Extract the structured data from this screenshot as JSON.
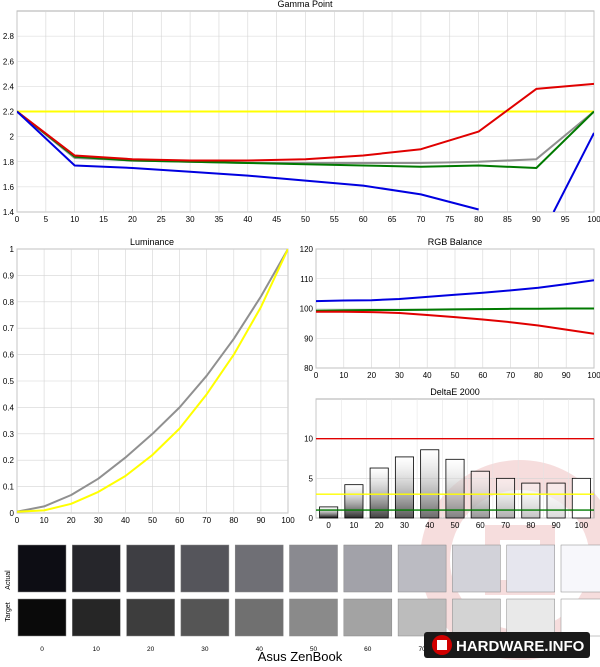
{
  "chart_data": [
    {
      "id": "gamma",
      "type": "line",
      "title": "Gamma Point",
      "x": [
        0,
        10,
        20,
        30,
        40,
        50,
        60,
        70,
        80,
        90,
        100
      ],
      "xticks": [
        0,
        5,
        10,
        15,
        20,
        25,
        30,
        35,
        40,
        45,
        50,
        55,
        60,
        65,
        70,
        75,
        80,
        85,
        90,
        95,
        100
      ],
      "yticks": [
        1.4,
        1.6,
        1.8,
        2,
        2.2,
        2.4,
        2.6,
        2.8
      ],
      "xlim": [
        0,
        100
      ],
      "ylim": [
        1.4,
        3.0
      ],
      "grid": true,
      "series": [
        {
          "color": "#ffff00",
          "values": [
            2.2,
            2.2,
            2.2,
            2.2,
            2.2,
            2.2,
            2.2,
            2.2,
            2.2,
            2.2,
            2.2
          ]
        },
        {
          "color": "#909090",
          "values": [
            2.2,
            1.83,
            1.81,
            1.8,
            1.79,
            1.79,
            1.79,
            1.79,
            1.8,
            1.82,
            2.2
          ]
        },
        {
          "color": "#007a00",
          "values": [
            2.2,
            1.84,
            1.81,
            1.8,
            1.79,
            1.78,
            1.77,
            1.76,
            1.77,
            1.75,
            2.2
          ]
        },
        {
          "color": "#e00000",
          "values": [
            2.2,
            1.85,
            1.82,
            1.81,
            1.81,
            1.82,
            1.85,
            1.9,
            2.04,
            2.38,
            2.42
          ]
        },
        {
          "color": "#0000e0",
          "values": [
            2.2,
            1.77,
            1.75,
            1.72,
            1.69,
            1.65,
            1.61,
            1.54,
            1.42,
            null,
            null
          ]
        },
        {
          "color": "#0000e0",
          "values": [
            null,
            null,
            null,
            null,
            null,
            null,
            null,
            null,
            null,
            1.4,
            2.03
          ],
          "x_override": [
            null,
            null,
            null,
            null,
            null,
            null,
            null,
            null,
            null,
            93,
            100
          ]
        }
      ]
    },
    {
      "id": "luminance",
      "type": "line",
      "title": "Luminance",
      "x": [
        0,
        10,
        20,
        30,
        40,
        50,
        60,
        70,
        80,
        90,
        100
      ],
      "xticks": [
        0,
        10,
        20,
        30,
        40,
        50,
        60,
        70,
        80,
        90,
        100
      ],
      "yticks": [
        0,
        0.1,
        0.2,
        0.3,
        0.4,
        0.5,
        0.6,
        0.7,
        0.8,
        0.9,
        1
      ],
      "xlim": [
        0,
        100
      ],
      "ylim": [
        0,
        1
      ],
      "grid": true,
      "series": [
        {
          "color": "#909090",
          "values": [
            0.005,
            0.025,
            0.068,
            0.13,
            0.21,
            0.3,
            0.4,
            0.52,
            0.66,
            0.82,
            1.0
          ]
        },
        {
          "color": "#ffff00",
          "values": [
            0.005,
            0.01,
            0.035,
            0.08,
            0.14,
            0.22,
            0.32,
            0.45,
            0.6,
            0.78,
            1.0
          ]
        }
      ]
    },
    {
      "id": "rgb",
      "type": "line",
      "title": "RGB Balance",
      "x": [
        0,
        10,
        20,
        30,
        40,
        50,
        60,
        70,
        80,
        90,
        100
      ],
      "xticks": [
        0,
        10,
        20,
        30,
        40,
        50,
        60,
        70,
        80,
        90,
        100
      ],
      "yticks": [
        80,
        90,
        100,
        110,
        120
      ],
      "xlim": [
        0,
        100
      ],
      "ylim": [
        80,
        120
      ],
      "grid": true,
      "series": [
        {
          "color": "#0000e0",
          "values": [
            102.5,
            102.7,
            102.8,
            103.2,
            103.9,
            104.6,
            105.3,
            106.1,
            107.0,
            108.2,
            109.5
          ]
        },
        {
          "color": "#007a00",
          "values": [
            99.3,
            99.4,
            99.5,
            99.5,
            99.6,
            99.7,
            99.8,
            99.9,
            99.9,
            100.0,
            100.0
          ]
        },
        {
          "color": "#e00000",
          "values": [
            98.9,
            98.9,
            98.8,
            98.5,
            97.8,
            97.1,
            96.3,
            95.4,
            94.3,
            92.9,
            91.5
          ]
        }
      ]
    },
    {
      "id": "deltae",
      "type": "bar",
      "title": "DeltaE 2000",
      "categories": [
        "0",
        "10",
        "20",
        "30",
        "40",
        "50",
        "60",
        "70",
        "80",
        "90",
        "100"
      ],
      "values": [
        1.4,
        4.2,
        6.3,
        7.7,
        8.6,
        7.4,
        5.9,
        5.0,
        4.4,
        4.4,
        5.0
      ],
      "bar_colors": [
        "#101010",
        "#2a2a2a",
        "#404040",
        "#555555",
        "#6a6a6a",
        "#7f7f7f",
        "#959595",
        "#ababab",
        "#c2c2c2",
        "#dadada",
        "#ffffff"
      ],
      "yticks": [
        0,
        5,
        10
      ],
      "ylim": [
        0,
        15
      ],
      "grid": true,
      "reference_lines": [
        {
          "value": 10,
          "color": "#e00000"
        },
        {
          "value": 3,
          "color": "#ffff00"
        },
        {
          "value": 1,
          "color": "#007a00"
        }
      ]
    }
  ],
  "swatches": {
    "actual_label": "Actual",
    "target_label": "Target",
    "labels": [
      "0",
      "10",
      "20",
      "30",
      "40",
      "50",
      "60",
      "70",
      "80",
      "90",
      "100"
    ],
    "actual_colors": [
      "#0d0d14",
      "#26262b",
      "#3e3e43",
      "#55555b",
      "#6f6f75",
      "#8a8a90",
      "#a2a2a9",
      "#bbbbc2",
      "#d2d2d9",
      "#e6e6ee",
      "#f7f7fb"
    ],
    "target_colors": [
      "#0a0a0a",
      "#262626",
      "#3d3d3d",
      "#555555",
      "#707070",
      "#8a8a8a",
      "#a3a3a3",
      "#bcbcbc",
      "#d3d3d3",
      "#e9e9e9",
      "#ffffff"
    ]
  },
  "footer": {
    "device": "Asus ZenBook",
    "logo": "HARDWARE.INFO"
  }
}
